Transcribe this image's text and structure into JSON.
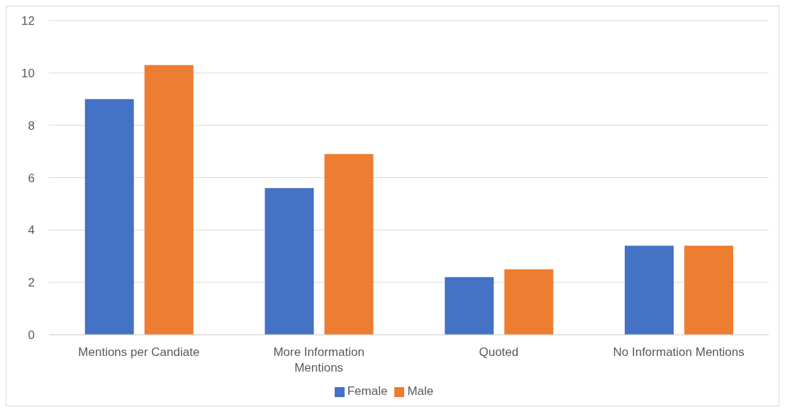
{
  "chart_data": {
    "type": "bar",
    "categories": [
      "Mentions per Candiate",
      "More Information Mentions",
      "Quoted",
      "No Information Mentions"
    ],
    "series": [
      {
        "name": "Female",
        "color": "#4472c4",
        "values": [
          9.0,
          5.6,
          2.2,
          3.4
        ]
      },
      {
        "name": "Male",
        "color": "#ed7d31",
        "values": [
          10.3,
          6.9,
          2.5,
          3.4
        ]
      }
    ],
    "ylim": [
      0,
      12
    ],
    "yticks": [
      0,
      2,
      4,
      6,
      8,
      10,
      12
    ],
    "grid": "y",
    "legend": "bottom"
  }
}
